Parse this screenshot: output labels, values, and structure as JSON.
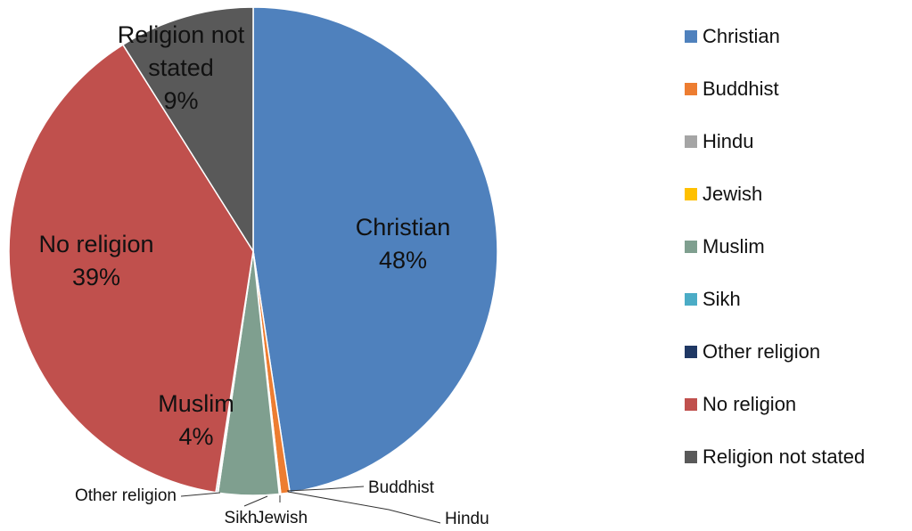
{
  "chart_data": {
    "type": "pie",
    "title": "",
    "slices": [
      {
        "name": "Christian",
        "value": 47.6,
        "label": "48%",
        "color": "#4f81bd",
        "label_mode": "inside"
      },
      {
        "name": "Buddhist",
        "value": 0.6,
        "label": "",
        "color": "#ed7d31",
        "label_mode": "leader"
      },
      {
        "name": "Hindu",
        "value": 0.05,
        "label": "",
        "color": "#a5a5a5",
        "label_mode": "leader"
      },
      {
        "name": "Jewish",
        "value": 0.05,
        "label": "",
        "color": "#ffc000",
        "label_mode": "leader"
      },
      {
        "name": "Muslim",
        "value": 4.0,
        "label": "4%",
        "color": "#7f9f8f",
        "label_mode": "inside"
      },
      {
        "name": "Sikh",
        "value": 0.05,
        "label": "",
        "color": "#4bacc6",
        "label_mode": "leader"
      },
      {
        "name": "Other religion",
        "value": 0.1,
        "label": "",
        "color": "#1f3864",
        "label_mode": "leader"
      },
      {
        "name": "No religion",
        "value": 38.6,
        "label": "39%",
        "color": "#c0504d",
        "label_mode": "inside"
      },
      {
        "name": "Religion not stated",
        "value": 8.95,
        "label": "9%",
        "color": "#595959",
        "label_mode": "inside"
      }
    ],
    "legend_position": "right"
  }
}
